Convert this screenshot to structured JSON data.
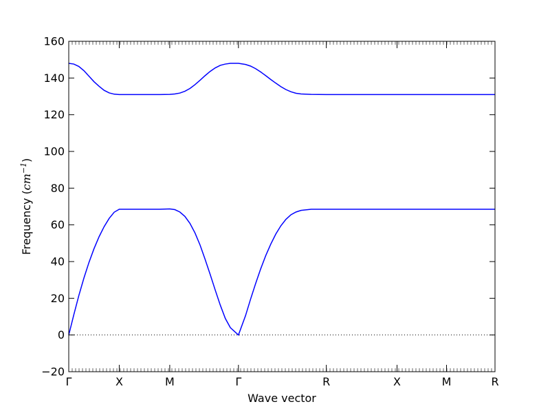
{
  "chart_data": {
    "type": "line",
    "xlabel": "Wave vector",
    "ylabel_prefix": "Frequency (",
    "ylabel_unit": "cm",
    "ylabel_exp": "−1",
    "ylabel_suffix": ")",
    "ylim": [
      -20,
      160
    ],
    "yticks": [
      -20,
      0,
      20,
      40,
      60,
      80,
      100,
      120,
      140,
      160
    ],
    "xlim": [
      0,
      4.22
    ],
    "xticks": [
      {
        "pos": 0.0,
        "label": "Γ"
      },
      {
        "pos": 0.5,
        "label": "X"
      },
      {
        "pos": 1.0,
        "label": "M"
      },
      {
        "pos": 1.68,
        "label": "Γ"
      },
      {
        "pos": 2.55,
        "label": "R"
      },
      {
        "pos": 3.25,
        "label": "X"
      },
      {
        "pos": 3.74,
        "label": "M"
      },
      {
        "pos": 4.22,
        "label": "R"
      }
    ],
    "zero_line": true,
    "series_color": "#0000ff",
    "series": [
      {
        "points": [
          [
            0.0,
            148.0
          ],
          [
            0.05,
            147.6
          ],
          [
            0.1,
            146.3
          ],
          [
            0.15,
            144.0
          ],
          [
            0.2,
            141.0
          ],
          [
            0.25,
            138.0
          ],
          [
            0.3,
            135.5
          ],
          [
            0.35,
            133.3
          ],
          [
            0.4,
            131.9
          ],
          [
            0.45,
            131.2
          ],
          [
            0.5,
            131.0
          ],
          [
            0.6,
            131.0
          ],
          [
            0.7,
            131.0
          ],
          [
            0.8,
            131.0
          ],
          [
            0.9,
            131.0
          ],
          [
            1.0,
            131.1
          ],
          [
            1.05,
            131.3
          ],
          [
            1.1,
            131.8
          ],
          [
            1.15,
            132.8
          ],
          [
            1.2,
            134.3
          ],
          [
            1.25,
            136.4
          ],
          [
            1.3,
            138.8
          ],
          [
            1.35,
            141.3
          ],
          [
            1.4,
            143.6
          ],
          [
            1.45,
            145.5
          ],
          [
            1.5,
            146.9
          ],
          [
            1.55,
            147.6
          ],
          [
            1.6,
            148.0
          ],
          [
            1.68,
            148.0
          ],
          [
            1.75,
            147.4
          ],
          [
            1.8,
            146.5
          ],
          [
            1.85,
            145.1
          ],
          [
            1.9,
            143.3
          ],
          [
            1.95,
            141.3
          ],
          [
            2.0,
            139.2
          ],
          [
            2.05,
            137.2
          ],
          [
            2.1,
            135.3
          ],
          [
            2.15,
            133.7
          ],
          [
            2.2,
            132.5
          ],
          [
            2.25,
            131.7
          ],
          [
            2.3,
            131.3
          ],
          [
            2.4,
            131.1
          ],
          [
            2.55,
            131.0
          ],
          [
            2.8,
            131.0
          ],
          [
            3.25,
            131.0
          ],
          [
            3.74,
            131.0
          ],
          [
            4.22,
            131.0
          ]
        ]
      },
      {
        "points": [
          [
            0.0,
            0.0
          ],
          [
            0.05,
            11.0
          ],
          [
            0.1,
            21.5
          ],
          [
            0.15,
            31.0
          ],
          [
            0.2,
            39.5
          ],
          [
            0.25,
            47.0
          ],
          [
            0.3,
            53.5
          ],
          [
            0.35,
            59.0
          ],
          [
            0.4,
            63.5
          ],
          [
            0.45,
            66.9
          ],
          [
            0.5,
            68.5
          ],
          [
            0.6,
            68.5
          ],
          [
            0.7,
            68.5
          ],
          [
            0.8,
            68.5
          ],
          [
            0.9,
            68.5
          ],
          [
            1.0,
            68.7
          ],
          [
            1.05,
            68.3
          ],
          [
            1.1,
            67.0
          ],
          [
            1.15,
            64.6
          ],
          [
            1.2,
            60.8
          ],
          [
            1.25,
            55.6
          ],
          [
            1.3,
            49.0
          ],
          [
            1.35,
            41.2
          ],
          [
            1.4,
            33.0
          ],
          [
            1.45,
            24.5
          ],
          [
            1.5,
            16.3
          ],
          [
            1.55,
            9.0
          ],
          [
            1.6,
            4.0
          ],
          [
            1.68,
            0.0
          ],
          [
            1.75,
            10.5
          ],
          [
            1.8,
            19.5
          ],
          [
            1.85,
            28.0
          ],
          [
            1.9,
            36.0
          ],
          [
            1.95,
            43.2
          ],
          [
            2.0,
            49.5
          ],
          [
            2.05,
            55.0
          ],
          [
            2.1,
            59.5
          ],
          [
            2.15,
            63.0
          ],
          [
            2.2,
            65.5
          ],
          [
            2.25,
            67.0
          ],
          [
            2.3,
            67.9
          ],
          [
            2.4,
            68.5
          ],
          [
            2.55,
            68.5
          ],
          [
            2.8,
            68.5
          ],
          [
            3.25,
            68.5
          ],
          [
            3.74,
            68.5
          ],
          [
            4.22,
            68.5
          ]
        ]
      }
    ]
  }
}
